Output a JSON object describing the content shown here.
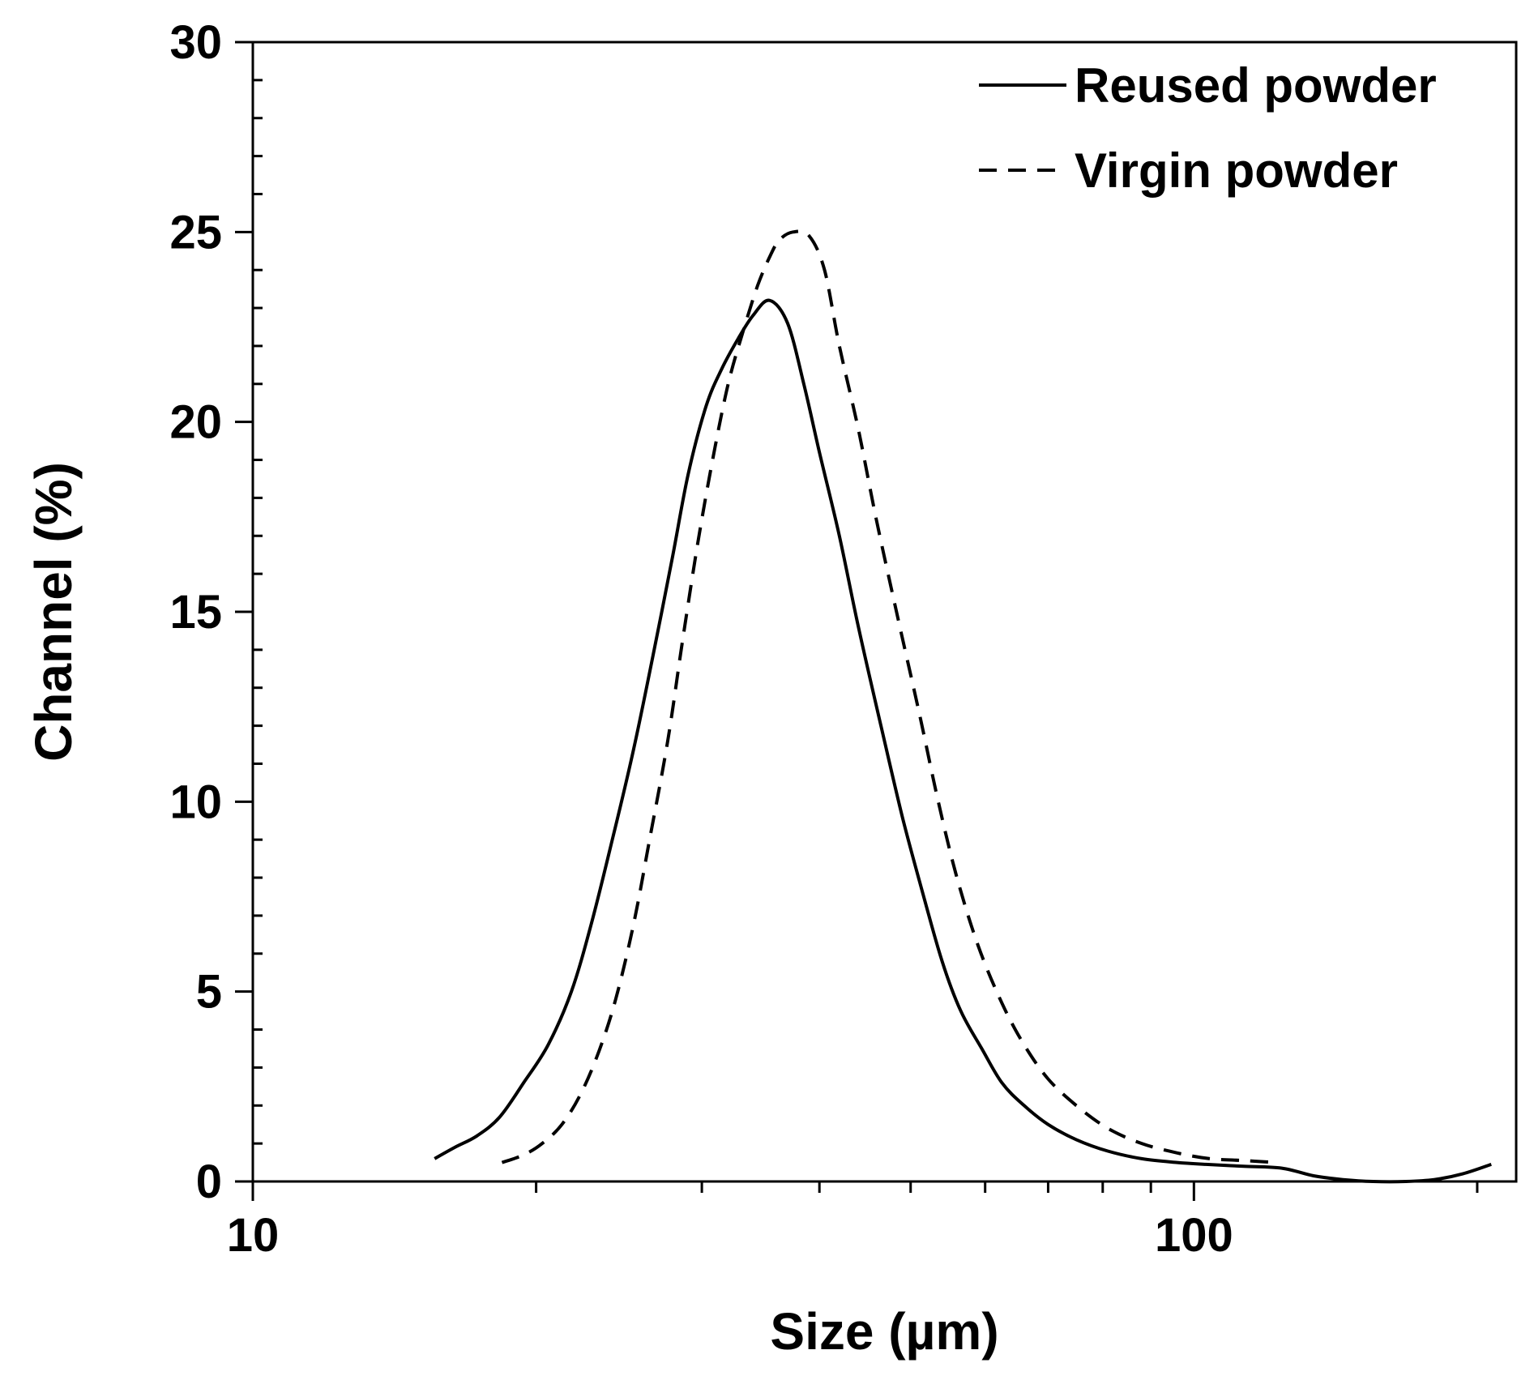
{
  "chart_data": {
    "type": "line",
    "title": "",
    "xlabel": "Size (µm)",
    "ylabel": "Channel (%)",
    "x_scale": "log",
    "xlim": [
      10,
      220
    ],
    "ylim": [
      0,
      30
    ],
    "x_ticks": [
      10,
      100
    ],
    "x_tick_labels": [
      "10",
      "100"
    ],
    "x_minor_ticks": [
      20,
      30,
      40,
      50,
      60,
      70,
      80,
      90,
      200
    ],
    "y_ticks": [
      0,
      5,
      10,
      15,
      20,
      25,
      30
    ],
    "y_tick_labels": [
      "0",
      "5",
      "10",
      "15",
      "20",
      "25",
      "30"
    ],
    "grid": false,
    "legend_position": "top-right",
    "colors": {
      "line": "#000000",
      "axis": "#000000",
      "background": "#ffffff"
    },
    "series": [
      {
        "name": "Reused powder",
        "style": "solid",
        "x": [
          15.6,
          16.4,
          17.3,
          18.3,
          19.4,
          20.6,
          21.8,
          22.9,
          24.1,
          25.4,
          26.6,
          27.9,
          29.0,
          30.3,
          31.5,
          32.8,
          34.0,
          35.4,
          37.0,
          38.5,
          40.0,
          42.0,
          44.0,
          46.5,
          49.0,
          51.5,
          54.0,
          56.5,
          59.5,
          62.5,
          66.0,
          70.0,
          75.0,
          81.0,
          88.0,
          96.0,
          103.0,
          113.0,
          124.0,
          134.0,
          144.0,
          155.0,
          168.0,
          180.0,
          193.0,
          207.0
        ],
        "y": [
          0.6,
          0.9,
          1.2,
          1.7,
          2.6,
          3.6,
          5.0,
          6.8,
          9.0,
          11.4,
          13.8,
          16.4,
          18.6,
          20.4,
          21.4,
          22.2,
          22.8,
          23.2,
          22.6,
          21.0,
          19.2,
          17.0,
          14.6,
          12.0,
          9.6,
          7.6,
          5.8,
          4.5,
          3.5,
          2.6,
          2.0,
          1.5,
          1.1,
          0.8,
          0.6,
          0.5,
          0.45,
          0.4,
          0.35,
          0.15,
          0.05,
          0.0,
          0.0,
          0.05,
          0.2,
          0.45
        ]
      },
      {
        "name": "Virgin powder",
        "style": "dashed",
        "x": [
          18.4,
          19.4,
          20.3,
          21.3,
          22.3,
          23.3,
          24.3,
          25.4,
          26.4,
          27.6,
          28.6,
          29.7,
          30.8,
          32.0,
          33.2,
          34.4,
          35.5,
          36.3,
          37.5,
          39.0,
          40.5,
          42.0,
          44.0,
          46.0,
          48.5,
          51.0,
          53.5,
          56.0,
          59.0,
          62.5,
          66.0,
          70.0,
          75.0,
          81.0,
          88.0,
          96.0,
          104.0,
          113.0,
          122.0
        ],
        "y": [
          0.5,
          0.7,
          1.0,
          1.5,
          2.3,
          3.4,
          4.8,
          6.8,
          9.0,
          11.6,
          14.2,
          16.8,
          19.0,
          21.0,
          22.4,
          23.6,
          24.4,
          24.8,
          25.0,
          24.9,
          24.0,
          22.0,
          19.8,
          17.4,
          14.8,
          12.4,
          10.0,
          8.0,
          6.2,
          4.7,
          3.6,
          2.7,
          2.0,
          1.4,
          1.0,
          0.75,
          0.6,
          0.55,
          0.5
        ]
      }
    ]
  }
}
